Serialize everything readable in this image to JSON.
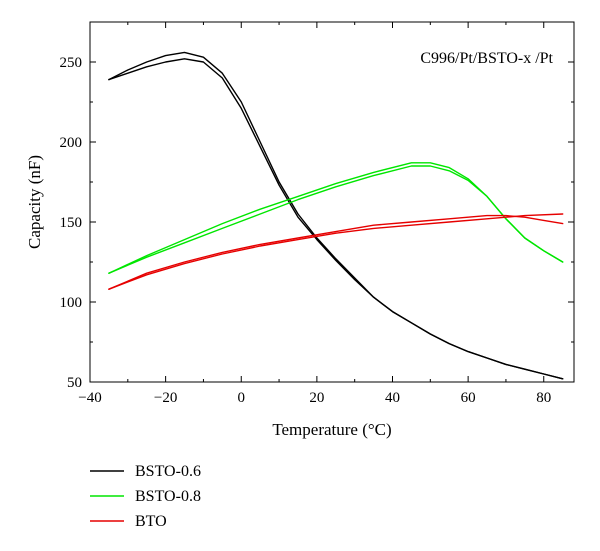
{
  "chart_data": {
    "type": "line",
    "title": "",
    "annotation": "C996/Pt/BSTO-x /Pt",
    "xlabel": "Temperature (°C)",
    "ylabel": "Capacity (nF)",
    "xlim": [
      -40,
      88
    ],
    "ylim": [
      50,
      275
    ],
    "xticks": [
      -40,
      -20,
      0,
      20,
      40,
      60,
      80
    ],
    "xtick_labels": [
      "−40",
      "−20",
      "0",
      "20",
      "40",
      "60",
      "80"
    ],
    "yticks": [
      50,
      100,
      150,
      200,
      250
    ],
    "ytick_labels": [
      "50",
      "100",
      "150",
      "200",
      "250"
    ],
    "grid": false,
    "legend_position": "bottom-left, below plot",
    "series": [
      {
        "name": "BSTO-0.6",
        "color": "#000000",
        "branches": [
          {
            "x": [
              -35,
              -30,
              -25,
              -20,
              -15,
              -10,
              -5,
              0,
              5,
              10,
              15,
              20,
              25,
              30,
              35,
              40,
              45,
              50,
              55,
              60,
              65,
              70,
              75,
              80,
              85
            ],
            "y": [
              239,
              245,
              250,
              254,
              256,
              253,
              243,
              225,
              200,
              175,
              155,
              140,
              127,
              115,
              103,
              94,
              87,
              80,
              74,
              69,
              65,
              61,
              58,
              55,
              52
            ]
          },
          {
            "x": [
              -35,
              -30,
              -25,
              -20,
              -15,
              -10,
              -5,
              0,
              5,
              10,
              15,
              20,
              25,
              30,
              35,
              40,
              45,
              50,
              55,
              60,
              65,
              70,
              75,
              80,
              85
            ],
            "y": [
              239,
              243,
              247,
              250,
              252,
              250,
              240,
              221,
              197,
              173,
              153,
              139,
              126,
              114,
              103,
              94,
              87,
              80,
              74,
              69,
              65,
              61,
              58,
              55,
              52
            ]
          }
        ]
      },
      {
        "name": "BSTO-0.8",
        "color": "#00e600",
        "branches": [
          {
            "x": [
              -35,
              -25,
              -15,
              -5,
              5,
              15,
              25,
              35,
              45,
              50,
              55,
              60,
              65,
              70,
              75,
              80,
              85
            ],
            "y": [
              118,
              129,
              139,
              149,
              158,
              166,
              174,
              181,
              187,
              187,
              184,
              177,
              166,
              152,
              140,
              132,
              125
            ]
          },
          {
            "x": [
              -35,
              -25,
              -15,
              -5,
              5,
              15,
              25,
              35,
              45,
              50,
              55,
              60,
              65,
              70,
              75,
              80,
              85
            ],
            "y": [
              118,
              128,
              137,
              146,
              155,
              164,
              172,
              179,
              185,
              185,
              182,
              176,
              166,
              152,
              140,
              132,
              125
            ]
          }
        ]
      },
      {
        "name": "BTO",
        "color": "#e60000",
        "branches": [
          {
            "x": [
              -35,
              -25,
              -15,
              -5,
              5,
              15,
              25,
              35,
              45,
              55,
              65,
              75,
              85
            ],
            "y": [
              108,
              117,
              124,
              130,
              135,
              139,
              143,
              146,
              148,
              150,
              152,
              154,
              155
            ]
          },
          {
            "x": [
              -35,
              -25,
              -15,
              -5,
              5,
              15,
              25,
              35,
              45,
              55,
              65,
              70,
              75,
              80,
              85
            ],
            "y": [
              108,
              118,
              125,
              131,
              136,
              140,
              144,
              148,
              150,
              152,
              154,
              154,
              153,
              151,
              149
            ]
          }
        ]
      }
    ]
  }
}
